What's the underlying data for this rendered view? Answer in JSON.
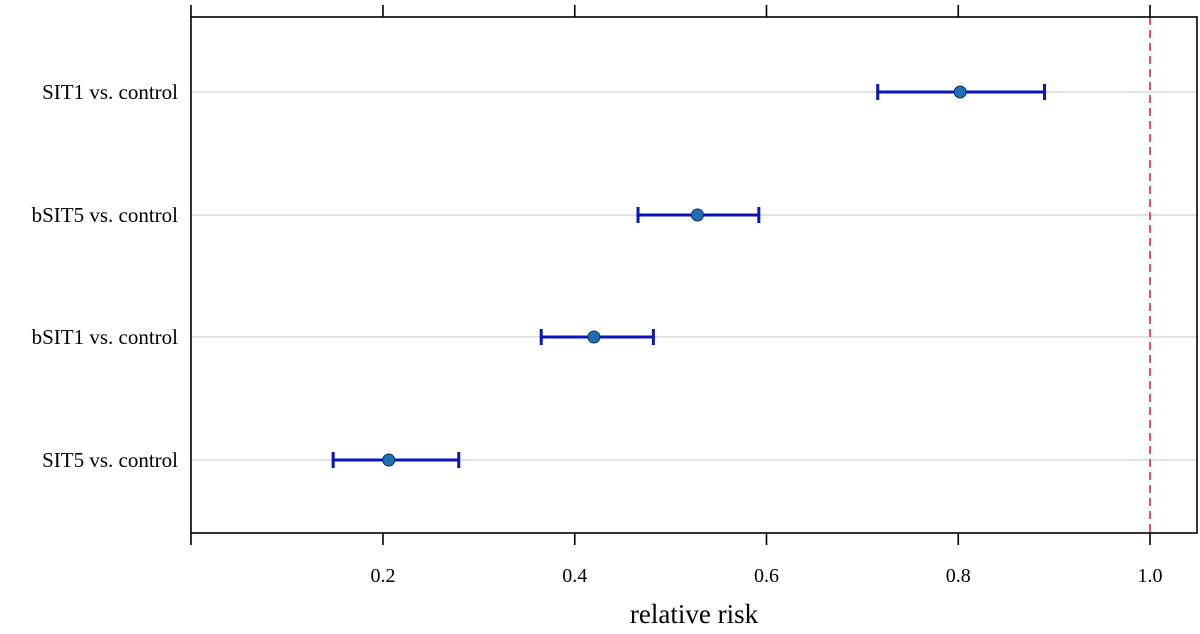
{
  "chart_data": {
    "type": "forest",
    "title": "",
    "xlabel": "relative risk",
    "ylabel": "",
    "xlim": [
      0.0,
      1.05
    ],
    "x_ticks": [
      0.2,
      0.4,
      0.6,
      0.8,
      1.0
    ],
    "x_tick_labels": [
      "0.2",
      "0.4",
      "0.6",
      "0.8",
      "1.0"
    ],
    "reference_line": 1.0,
    "grid": "horizontal",
    "categories": [
      "SIT1 vs. control",
      "bSIT5 vs. control",
      "bSIT1 vs. control",
      "SIT5 vs. control"
    ],
    "estimates": [
      0.802,
      0.528,
      0.42,
      0.206
    ],
    "ci_lower": [
      0.716,
      0.466,
      0.365,
      0.148
    ],
    "ci_upper": [
      0.89,
      0.592,
      0.482,
      0.279
    ],
    "colors": {
      "error_bar": "#0a14b8",
      "point_fill": "#1f6fb3",
      "reference_line": "#e0425a",
      "grid": "#d9d9d9"
    }
  }
}
